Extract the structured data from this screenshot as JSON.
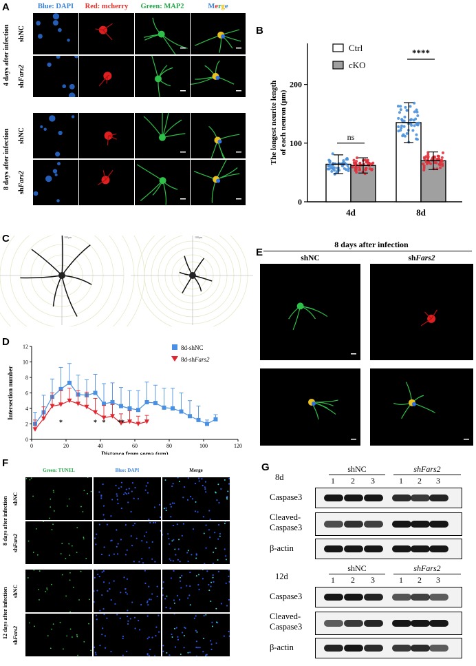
{
  "panel_labels": {
    "A": "A",
    "B": "B",
    "C": "C",
    "D": "D",
    "E": "E",
    "F": "F",
    "G": "G"
  },
  "panelA": {
    "channels": [
      {
        "label": "Blue: DAPI",
        "color": "#3b82d6"
      },
      {
        "label": "Red: mcherry",
        "color": "#e0302a"
      },
      {
        "label": "Green: MAP2",
        "color": "#26a64a"
      },
      {
        "label": "Merge",
        "color": "#000000"
      }
    ],
    "merge_letters": [
      {
        "ch": "M",
        "color": "#3b82d6"
      },
      {
        "ch": "e",
        "color": "#e0302a"
      },
      {
        "ch": "r",
        "color": "#26a64a"
      },
      {
        "ch": "g",
        "color": "#e6b800"
      },
      {
        "ch": "e",
        "color": "#3b82d6"
      }
    ],
    "groups": [
      {
        "label": "4 days after infection",
        "rows": [
          {
            "prefix": "sh",
            "name": "NC",
            "italic": false
          },
          {
            "prefix": "sh",
            "name": "Fars2",
            "italic": true
          }
        ]
      },
      {
        "label": "8 days after infection",
        "rows": [
          {
            "prefix": "sh",
            "name": "NC",
            "italic": false
          },
          {
            "prefix": "sh",
            "name": "Fars2",
            "italic": true
          }
        ]
      }
    ]
  },
  "chart_data": [
    {
      "type": "bar",
      "panel": "B",
      "categories": [
        "4d",
        "8d"
      ],
      "series": [
        {
          "name": "Ctrl",
          "values": [
            64,
            135
          ],
          "err": [
            16,
            34
          ],
          "color": "#ffffff"
        },
        {
          "name": "cKO",
          "values": [
            62,
            70
          ],
          "err": [
            13,
            15
          ],
          "color": "#a0a0a0"
        }
      ],
      "ylabel": "The longest neurite length of each neuron (μm)",
      "ylim": [
        0,
        270
      ],
      "yticks": [
        0,
        100,
        200
      ],
      "significance": [
        {
          "category": "4d",
          "label": "ns"
        },
        {
          "category": "8d",
          "label": "****"
        }
      ],
      "legend_position": "top-left"
    },
    {
      "type": "line",
      "panel": "D",
      "xlabel": "Distance from soma (μm)",
      "ylabel": "Intersection number",
      "xlim": [
        0,
        120
      ],
      "ylim": [
        0,
        12
      ],
      "xticks": [
        0,
        20,
        40,
        60,
        80,
        100,
        120
      ],
      "yticks": [
        0,
        2,
        4,
        6,
        8,
        10,
        12
      ],
      "series": [
        {
          "name": "8d-shNC",
          "color": "#4a90e2",
          "marker": "square",
          "x": [
            2,
            7,
            12,
            17,
            22,
            27,
            32,
            37,
            42,
            47,
            52,
            57,
            62,
            67,
            72,
            77,
            82,
            87,
            92,
            97,
            102,
            107
          ],
          "y": [
            2.0,
            3.5,
            5.5,
            6.5,
            7.3,
            5.8,
            5.7,
            6.0,
            4.6,
            4.8,
            4.3,
            4.0,
            3.8,
            4.8,
            4.7,
            4.1,
            4.0,
            3.6,
            3.0,
            2.5,
            2.0,
            2.6
          ],
          "err": [
            1.5,
            2.2,
            2.3,
            2.8,
            2.5,
            2.5,
            2.0,
            2.4,
            2.6,
            2.5,
            2.4,
            2.3,
            2.5,
            2.6,
            2.3,
            2.5,
            2.6,
            2.4,
            2.0,
            1.8,
            0.5,
            0.6
          ]
        },
        {
          "name": "8d-shFars2",
          "color": "#e0262e",
          "marker": "triangle-down",
          "x": [
            2,
            7,
            12,
            17,
            22,
            27,
            32,
            37,
            42,
            47,
            52,
            57,
            62,
            67
          ],
          "y": [
            1.3,
            2.7,
            4.3,
            4.5,
            5.0,
            4.6,
            4.2,
            3.5,
            2.8,
            3.0,
            2.1,
            2.3,
            2.0,
            2.3
          ],
          "err": [
            1.2,
            1.5,
            1.7,
            1.8,
            1.6,
            1.7,
            1.9,
            1.8,
            1.6,
            1.5,
            1.2,
            1.4,
            1.0,
            0.8
          ]
        }
      ],
      "significance": [
        {
          "x": 17,
          "label": "*"
        },
        {
          "x": 37,
          "label": "*"
        },
        {
          "x": 42,
          "label": "*"
        },
        {
          "x": 52,
          "label": "**"
        }
      ],
      "legend": [
        {
          "prefix": "8d-sh",
          "name": "NC",
          "italic": false
        },
        {
          "prefix": "8d-sh",
          "name": "Fars2",
          "italic": true
        }
      ]
    }
  ],
  "panelC": {
    "scale_label_left": "100μm",
    "scale_label_right": "100μm"
  },
  "panelE": {
    "title": "8 days after infection",
    "columns": [
      {
        "prefix": "sh",
        "name": "NC",
        "italic": false
      },
      {
        "prefix": "sh",
        "name": "Fars2",
        "italic": true
      }
    ]
  },
  "panelF": {
    "channels": [
      {
        "label": "Green: TUNEL",
        "color": "#26a64a"
      },
      {
        "label": "Blue: DAPI",
        "color": "#3b82d6"
      },
      {
        "label": "Merge",
        "color": "#000000"
      }
    ],
    "groups": [
      {
        "label": "8 days after infection",
        "rows": [
          {
            "prefix": "sh",
            "name": "NC",
            "italic": false
          },
          {
            "prefix": "sh",
            "name": "Fars2",
            "italic": true
          }
        ]
      },
      {
        "label": "12 days after infection",
        "rows": [
          {
            "prefix": "sh",
            "name": "NC",
            "italic": false
          },
          {
            "prefix": "sh",
            "name": "Fars2",
            "italic": true
          }
        ]
      }
    ]
  },
  "panelG": {
    "blots": [
      {
        "time": "8d",
        "groups": [
          {
            "prefix": "",
            "name": "shNC",
            "italic": false
          },
          {
            "prefix": "",
            "name": "shFars2",
            "italic": true
          }
        ],
        "lanes": [
          "1",
          "2",
          "3",
          "1",
          "2",
          "3"
        ],
        "rows": [
          "Caspase3",
          "Cleaved-\nCaspase3",
          "β-actin"
        ]
      },
      {
        "time": "12d",
        "groups": [
          {
            "prefix": "",
            "name": "shNC",
            "italic": false
          },
          {
            "prefix": "",
            "name": "shFars2",
            "italic": true
          }
        ],
        "lanes": [
          "1",
          "2",
          "3",
          "1",
          "2",
          "3"
        ],
        "rows": [
          "Caspase3",
          "Cleaved-\nCaspase3",
          "β-actin"
        ]
      }
    ]
  }
}
